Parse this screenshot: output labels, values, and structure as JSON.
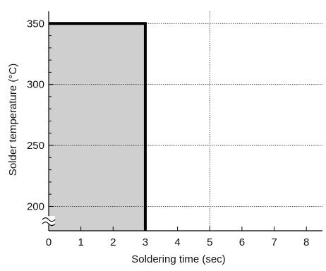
{
  "chart_data": {
    "type": "area",
    "xlabel": "Soldering time (sec)",
    "ylabel": "Solder temperature (°C)",
    "xlim": [
      0,
      8.5
    ],
    "ylim": [
      180,
      360
    ],
    "x_ticks": [
      0,
      1,
      2,
      3,
      4,
      5,
      6,
      7,
      8
    ],
    "x_tick_labels": [
      "0",
      "1",
      "2",
      "3",
      "4",
      "5",
      "6",
      "7",
      "8"
    ],
    "y_ticks": [
      200,
      250,
      300,
      350
    ],
    "y_tick_labels": [
      "200",
      "250",
      "300",
      "350"
    ],
    "y_minor_step": 10,
    "grid": true,
    "axis_break": "y",
    "series": [
      {
        "x": [
          0,
          3,
          3
        ],
        "y": [
          350,
          350,
          180
        ]
      }
    ],
    "fill_color": "#cfcfcf",
    "line_color": "#000000"
  }
}
